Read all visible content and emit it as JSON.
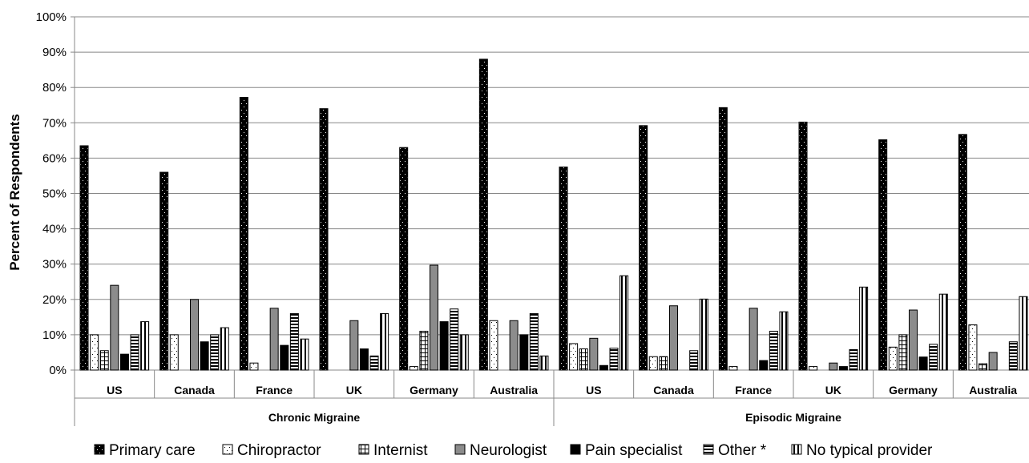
{
  "chart_data": {
    "type": "bar",
    "ylabel": "Percent of Respondents",
    "ylim": [
      0,
      100
    ],
    "yticks": [
      "0%",
      "10%",
      "20%",
      "30%",
      "40%",
      "50%",
      "60%",
      "70%",
      "80%",
      "90%",
      "100%"
    ],
    "grid": true,
    "legend_position": "bottom",
    "groups": [
      {
        "name": "Chronic Migraine",
        "categories": [
          "US",
          "Canada",
          "France",
          "UK",
          "Germany",
          "Australia"
        ]
      },
      {
        "name": "Episodic Migraine",
        "categories": [
          "US",
          "Canada",
          "France",
          "UK",
          "Germany",
          "Australia"
        ]
      }
    ],
    "categories": [
      "US",
      "Canada",
      "France",
      "UK",
      "Germany",
      "Australia",
      "US",
      "Canada",
      "France",
      "UK",
      "Germany",
      "Australia"
    ],
    "series": [
      {
        "name": "Primary care",
        "values": [
          63.5,
          56,
          77.2,
          74,
          63,
          88,
          57.5,
          69.2,
          74.3,
          70.2,
          65.2,
          66.7
        ]
      },
      {
        "name": "Chiropractor",
        "values": [
          10,
          10,
          2,
          0,
          1,
          14,
          7.5,
          3.8,
          1,
          1,
          6.5,
          12.8
        ]
      },
      {
        "name": "Internist",
        "values": [
          5.5,
          0,
          0,
          0,
          11,
          0,
          6,
          3.8,
          0,
          0,
          10,
          1.8
        ]
      },
      {
        "name": "Neurologist",
        "values": [
          24,
          20,
          17.5,
          14,
          29.7,
          14,
          9,
          18.2,
          17.5,
          2,
          17,
          5
        ]
      },
      {
        "name": "Pain specialist",
        "values": [
          4.5,
          8,
          7,
          6,
          13.7,
          10,
          1.3,
          0,
          2.7,
          1,
          3.7,
          0
        ]
      },
      {
        "name": "Other *",
        "values": [
          10,
          10,
          16,
          4,
          17.3,
          16,
          6.2,
          5.5,
          11,
          5.8,
          7.3,
          8
        ]
      },
      {
        "name": "No typical provider",
        "values": [
          13.7,
          12,
          8.8,
          16,
          10,
          4,
          26.7,
          20.1,
          16.5,
          23.5,
          21.5,
          20.8
        ]
      }
    ],
    "legend": [
      "Primary care",
      "Chiropractor",
      "Internist",
      "Neurologist",
      "Pain specialist",
      "Other *",
      "No typical provider"
    ]
  }
}
